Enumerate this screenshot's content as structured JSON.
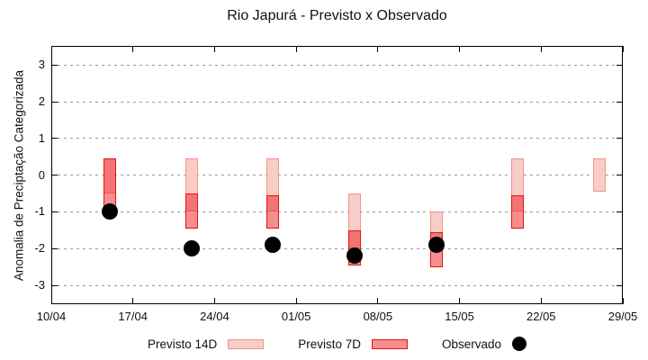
{
  "title": "Rio Japurá - Previsto x Observado",
  "y_axis": {
    "label": "Anomalia de Preciptação Categorizada",
    "ticks": [
      {
        "v": 3,
        "label": "3"
      },
      {
        "v": 2,
        "label": "2"
      },
      {
        "v": 1,
        "label": "1"
      },
      {
        "v": 0,
        "label": "0"
      },
      {
        "v": -1,
        "label": "-1"
      },
      {
        "v": -2,
        "label": "-2"
      },
      {
        "v": -3,
        "label": "-3"
      }
    ]
  },
  "x_axis": {
    "ticks": [
      {
        "day": 0,
        "label": "10/04"
      },
      {
        "day": 7,
        "label": "17/04"
      },
      {
        "day": 14,
        "label": "24/04"
      },
      {
        "day": 21,
        "label": "01/05"
      },
      {
        "day": 28,
        "label": "08/05"
      },
      {
        "day": 35,
        "label": "15/05"
      },
      {
        "day": 42,
        "label": "22/05"
      },
      {
        "day": 49,
        "label": "29/05"
      }
    ]
  },
  "legend": {
    "previsto14_label": "Previsto 14D",
    "previsto7_label": "Previsto 7D",
    "observado_label": "Observado"
  },
  "colors": {
    "p14_fill": "#f8cdc8",
    "p14_border": "#f0948a",
    "p7_fill": "rgba(235,30,30,0.5)",
    "p7_border": "#e41414",
    "obs": "#000000",
    "grid": "#9a9a9a",
    "frame": "#000000"
  },
  "chart_data": {
    "type": "range-bar+scatter",
    "title": "Rio Japurá - Previsto x Observado",
    "ylabel": "Anomalia de Preciptação Categorizada",
    "ylim": [
      -3.5,
      3.5
    ],
    "x_range": [
      "10/04",
      "29/05"
    ],
    "grid": "horizontal-dotted",
    "legend_position": "below",
    "series_names": [
      "Previsto 14D",
      "Previsto 7D",
      "Observado"
    ],
    "bars": [
      {
        "date": "15/04",
        "day": 5,
        "previsto14": [
          0.45,
          -0.5
        ],
        "previsto7": [
          0.45,
          -1.05
        ],
        "observado": -1.0
      },
      {
        "date": "22/04",
        "day": 12,
        "previsto14": [
          0.45,
          -1.0
        ],
        "previsto7": [
          -0.5,
          -1.45
        ],
        "observado": -2.0
      },
      {
        "date": "29/04",
        "day": 19,
        "previsto14": [
          0.45,
          -1.0
        ],
        "previsto7": [
          -0.55,
          -1.45
        ],
        "observado": -1.9
      },
      {
        "date": "06/05",
        "day": 26,
        "previsto14": [
          -0.5,
          -2.0
        ],
        "previsto7": [
          -1.5,
          -2.45
        ],
        "observado": -2.2
      },
      {
        "date": "13/05",
        "day": 33,
        "previsto14": [
          -1.0,
          -2.0
        ],
        "previsto7": [
          -1.55,
          -2.5
        ],
        "observado": -1.9
      },
      {
        "date": "20/05",
        "day": 40,
        "previsto14": [
          0.45,
          -1.0
        ],
        "previsto7": [
          -0.55,
          -1.45
        ],
        "observado": null
      },
      {
        "date": "27/05",
        "day": 47,
        "previsto14": [
          0.45,
          -0.45
        ],
        "previsto7": null,
        "observado": null
      }
    ]
  }
}
